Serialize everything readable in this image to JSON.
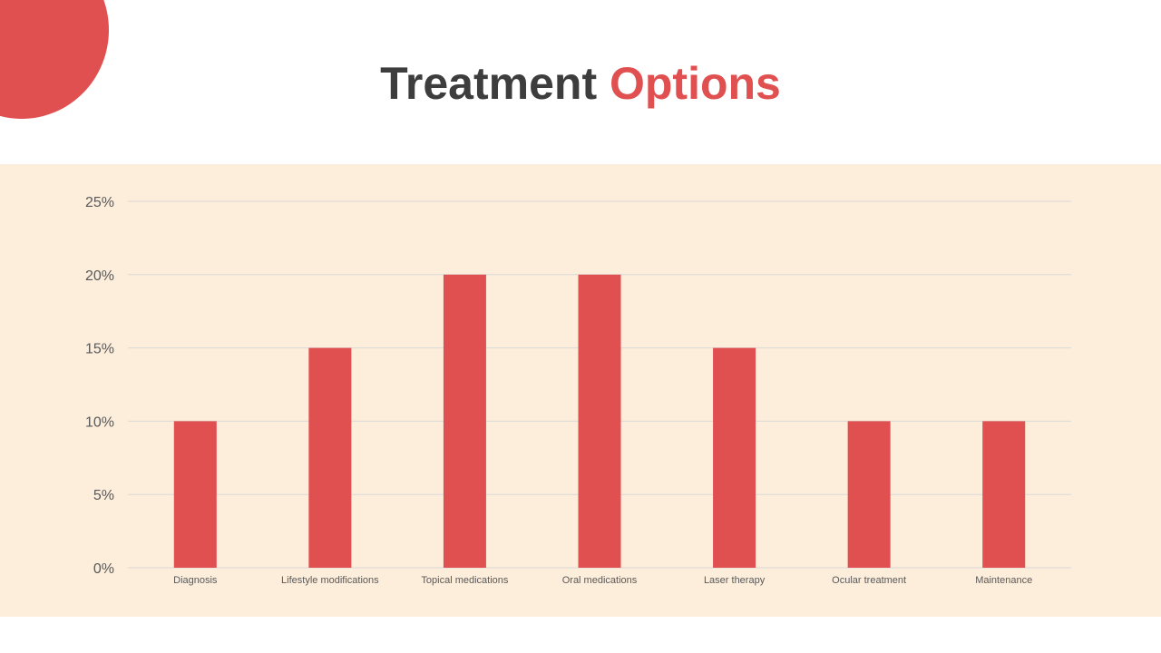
{
  "slide": {
    "title_main": "Treatment",
    "title_accent": "Options"
  },
  "colors": {
    "accent": "#e05050",
    "title_dark": "#3d3d3d",
    "panel_bg": "#fdeddb",
    "grid": "#d9d9d9",
    "label": "#595959"
  },
  "chart_data": {
    "type": "bar",
    "categories": [
      "Diagnosis",
      "Lifestyle modifications",
      "Topical medications",
      "Oral medications",
      "Laser therapy",
      "Ocular treatment",
      "Maintenance"
    ],
    "values": [
      10,
      15,
      20,
      20,
      15,
      10,
      10
    ],
    "value_format": "percent",
    "ylim": [
      0,
      25
    ],
    "yticks": [
      0,
      5,
      10,
      15,
      20,
      25
    ],
    "ytick_labels": [
      "0%",
      "5%",
      "10%",
      "15%",
      "20%",
      "25%"
    ],
    "grid": true,
    "legend": "none",
    "title": "",
    "xlabel": "",
    "ylabel": ""
  }
}
